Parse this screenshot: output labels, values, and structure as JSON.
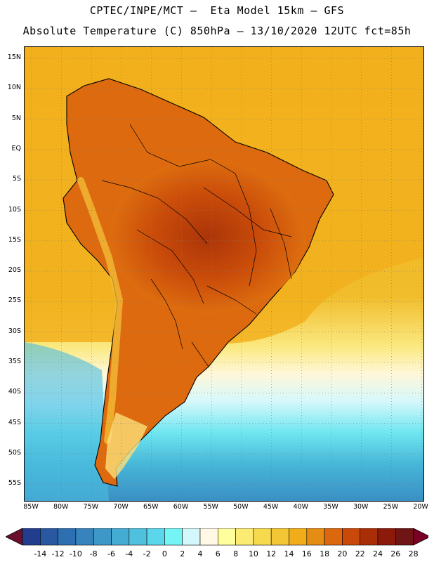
{
  "title": {
    "line1": "CPTEC/INPE/MCT –  Eta Model 15km – GFS",
    "line2": "Absolute Temperature (C) 850hPa – 13/10/2020 12UTC fct=85h"
  },
  "map": {
    "lat_labels": [
      "15N",
      "10N",
      "5N",
      "EQ",
      "5S",
      "10S",
      "15S",
      "20S",
      "25S",
      "30S",
      "35S",
      "40S",
      "45S",
      "50S",
      "55S"
    ],
    "lon_labels": [
      "85W",
      "80W",
      "75W",
      "70W",
      "65W",
      "60W",
      "55W",
      "50W",
      "45W",
      "40W",
      "35W",
      "30W",
      "25W",
      "20W"
    ],
    "background_color": "#f2ae17",
    "land_color": "#dd6a0e",
    "coast_color": "#000000",
    "grid_color": "#7f7f7f"
  },
  "colorbar": {
    "labels": [
      "-14",
      "-12",
      "-10",
      "-8",
      "-6",
      "-4",
      "-2",
      "0",
      "2",
      "4",
      "6",
      "8",
      "10",
      "12",
      "14",
      "16",
      "18",
      "20",
      "22",
      "24",
      "26",
      "28"
    ],
    "colors": [
      "#6b0f2d",
      "#223d8e",
      "#2a58a0",
      "#2e6fb2",
      "#3783bd",
      "#3d97c7",
      "#44abd2",
      "#4fc0de",
      "#5bd6ea",
      "#75f4f6",
      "#d3f7fa",
      "#fff8e4",
      "#ffff9c",
      "#fbeb72",
      "#f7d94e",
      "#f2c635",
      "#f0ad19",
      "#e58c14",
      "#db680e",
      "#c84909",
      "#a92e07",
      "#8c1a0a",
      "#6f1515",
      "#7a0025"
    ]
  }
}
